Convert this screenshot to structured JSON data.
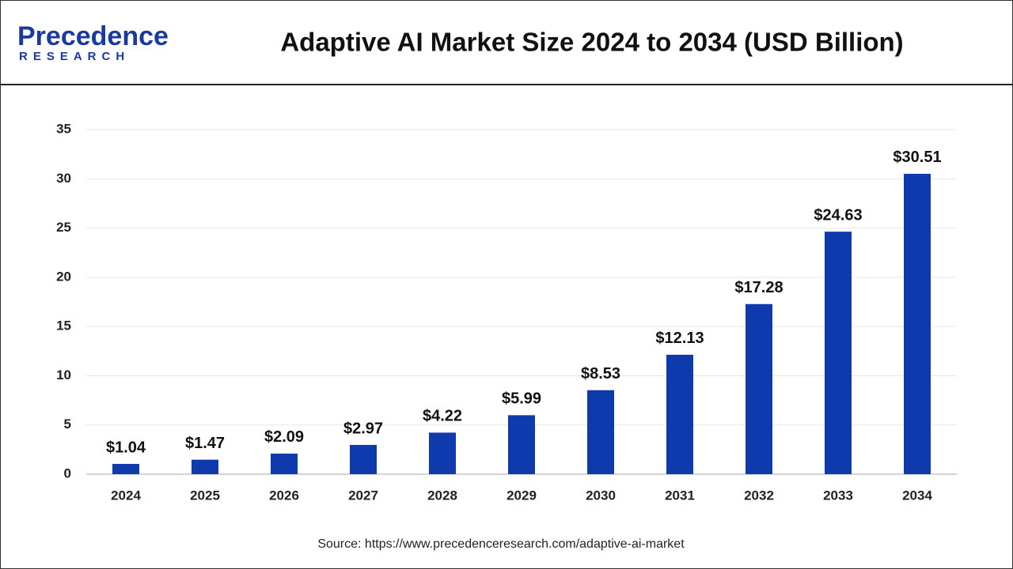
{
  "logo": {
    "name": "Precedence",
    "tagline": "RESEARCH"
  },
  "chart_data": {
    "type": "bar",
    "title": "Adaptive AI Market Size 2024 to 2034 (USD Billion)",
    "categories": [
      "2024",
      "2025",
      "2026",
      "2027",
      "2028",
      "2029",
      "2030",
      "2031",
      "2032",
      "2033",
      "2034"
    ],
    "values": [
      1.04,
      1.47,
      2.09,
      2.97,
      4.22,
      5.99,
      8.53,
      12.13,
      17.28,
      24.63,
      30.51
    ],
    "value_labels": [
      "$1.04",
      "$1.47",
      "$2.09",
      "$2.97",
      "$4.22",
      "$5.99",
      "$8.53",
      "$12.13",
      "$17.28",
      "$24.63",
      "$30.51"
    ],
    "color": "#0e3aad",
    "ylim": [
      0,
      35
    ],
    "yticks": [
      0,
      5,
      10,
      15,
      20,
      25,
      30,
      35
    ],
    "grid": true,
    "source": "Source: https://www.precedenceresearch.com/adaptive-ai-market"
  }
}
